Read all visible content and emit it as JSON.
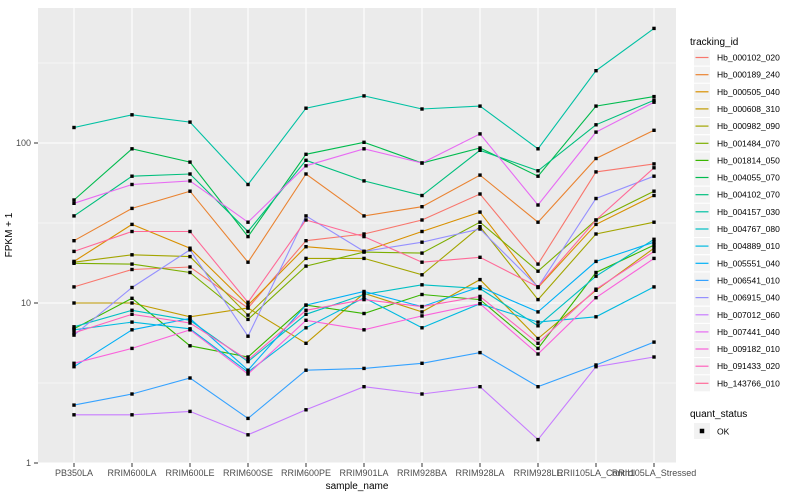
{
  "chart_data": {
    "type": "line",
    "title": "",
    "xlabel": "sample_name",
    "ylabel": "FPKM + 1",
    "y_scale": "log10",
    "ylim": [
      1,
      700
    ],
    "y_major_ticks": [
      1,
      10,
      100
    ],
    "y_minor_ticks": [
      3.162,
      31.62,
      316.2
    ],
    "grid": "on",
    "panel_bg": "#EBEBEB",
    "grid_color": "#FFFFFF",
    "point_shape": "filled-square",
    "point_color": "#000000",
    "x_categories": [
      "PB350LA",
      "RRIM600LA",
      "RRIM600LE",
      "RRIM600SE",
      "RRIM600PE",
      "RRIM901LA",
      "RRIM928BA",
      "RRIM928LA",
      "RRIM928LE",
      "RRII105LA_Control",
      "RRII105LA_Stressed"
    ],
    "series": [
      {
        "name": "Hb_000102_020",
        "color": "#F8766D",
        "values": [
          12.6,
          16.2,
          16.8,
          9.3,
          24.5,
          27,
          33,
          48,
          17.5,
          66,
          74
        ]
      },
      {
        "name": "Hb_000189_240",
        "color": "#EA8331",
        "values": [
          24.5,
          39,
          50,
          18,
          64,
          35,
          40,
          63,
          32,
          80,
          120
        ]
      },
      {
        "name": "Hb_000505_040",
        "color": "#D89000",
        "values": [
          18.2,
          31,
          22,
          9.7,
          22.5,
          21,
          28,
          37,
          12.5,
          31,
          47
        ]
      },
      {
        "name": "Hb_000608_310",
        "color": "#C09B00",
        "values": [
          10,
          10,
          8.2,
          9.3,
          5.6,
          11.5,
          8.8,
          14,
          6.0,
          12,
          22
        ]
      },
      {
        "name": "Hb_000982_090",
        "color": "#A3A500",
        "values": [
          18,
          20,
          19.5,
          8.4,
          19,
          19,
          15,
          30,
          10.5,
          27,
          32
        ]
      },
      {
        "name": "Hb_001484_070",
        "color": "#7CAE00",
        "values": [
          17.7,
          17.5,
          15.5,
          7.9,
          17,
          20.8,
          20.5,
          32,
          15.8,
          33,
          50
        ]
      },
      {
        "name": "Hb_001814_050",
        "color": "#39B600",
        "values": [
          6.9,
          10.7,
          5.4,
          4.6,
          9.7,
          8.6,
          11.3,
          10.5,
          5.2,
          15.5,
          23
        ]
      },
      {
        "name": "Hb_004055_070",
        "color": "#00BB4E",
        "values": [
          44,
          92,
          76,
          26,
          85,
          101,
          75,
          93,
          62,
          170,
          195
        ]
      },
      {
        "name": "Hb_004102_070",
        "color": "#00BF7D",
        "values": [
          35,
          62,
          64,
          28,
          78,
          58,
          47,
          90,
          67,
          130,
          185
        ]
      },
      {
        "name": "Hb_004157_030",
        "color": "#00C1A3",
        "values": [
          125,
          150,
          135,
          55,
          165,
          197,
          163,
          170,
          92,
          283,
          520
        ]
      },
      {
        "name": "Hb_004767_080",
        "color": "#00BFC4",
        "values": [
          7.1,
          9,
          7.8,
          4.3,
          8.5,
          11.3,
          13,
          12.3,
          7.2,
          14.7,
          25
        ]
      },
      {
        "name": "Hb_004889_010",
        "color": "#00BAE0",
        "values": [
          6.8,
          7.6,
          6.9,
          3.7,
          7.0,
          10.8,
          7.0,
          9.9,
          7.6,
          8.2,
          12.6
        ]
      },
      {
        "name": "Hb_005551_040",
        "color": "#00B0F6",
        "values": [
          4.0,
          6.8,
          8.0,
          3.8,
          9.7,
          11.8,
          9.5,
          12.6,
          8.8,
          18.2,
          24
        ]
      },
      {
        "name": "Hb_006541_010",
        "color": "#35A2FF",
        "values": [
          2.3,
          2.7,
          3.4,
          1.9,
          3.8,
          3.9,
          4.2,
          4.9,
          3.0,
          4.1,
          5.7
        ]
      },
      {
        "name": "Hb_006915_040",
        "color": "#9590FF",
        "values": [
          6.3,
          12.5,
          21.5,
          6.2,
          35,
          21,
          24,
          29,
          12.6,
          45,
          62
        ]
      },
      {
        "name": "Hb_007012_060",
        "color": "#C77CFF",
        "values": [
          2.0,
          2.0,
          2.1,
          1.5,
          2.15,
          3.0,
          2.7,
          3.0,
          1.4,
          4.0,
          4.6
        ]
      },
      {
        "name": "Hb_007441_040",
        "color": "#E76BF3",
        "values": [
          42,
          55,
          58,
          32,
          72,
          92,
          75,
          114,
          41,
          117,
          180
        ]
      },
      {
        "name": "Hb_009182_010",
        "color": "#FA62DB",
        "values": [
          4.2,
          5.2,
          6.8,
          3.6,
          7.8,
          6.8,
          8.3,
          9.9,
          4.8,
          10.8,
          19
        ]
      },
      {
        "name": "Hb_091433_020",
        "color": "#FF62BC",
        "values": [
          6.5,
          8.5,
          7.5,
          4.4,
          9.0,
          10.5,
          9.5,
          11,
          5.6,
          12.2,
          21
        ]
      },
      {
        "name": "Hb_143766_010",
        "color": "#FF6A98",
        "values": [
          21,
          28,
          28,
          10.1,
          33,
          26,
          18,
          19.3,
          12.6,
          33,
          70
        ]
      }
    ],
    "legend": {
      "series_title": "tracking_id",
      "shape_title": "quant_status",
      "shape_label": "OK",
      "position": "right",
      "key_bg": "#F2F2F2"
    }
  }
}
